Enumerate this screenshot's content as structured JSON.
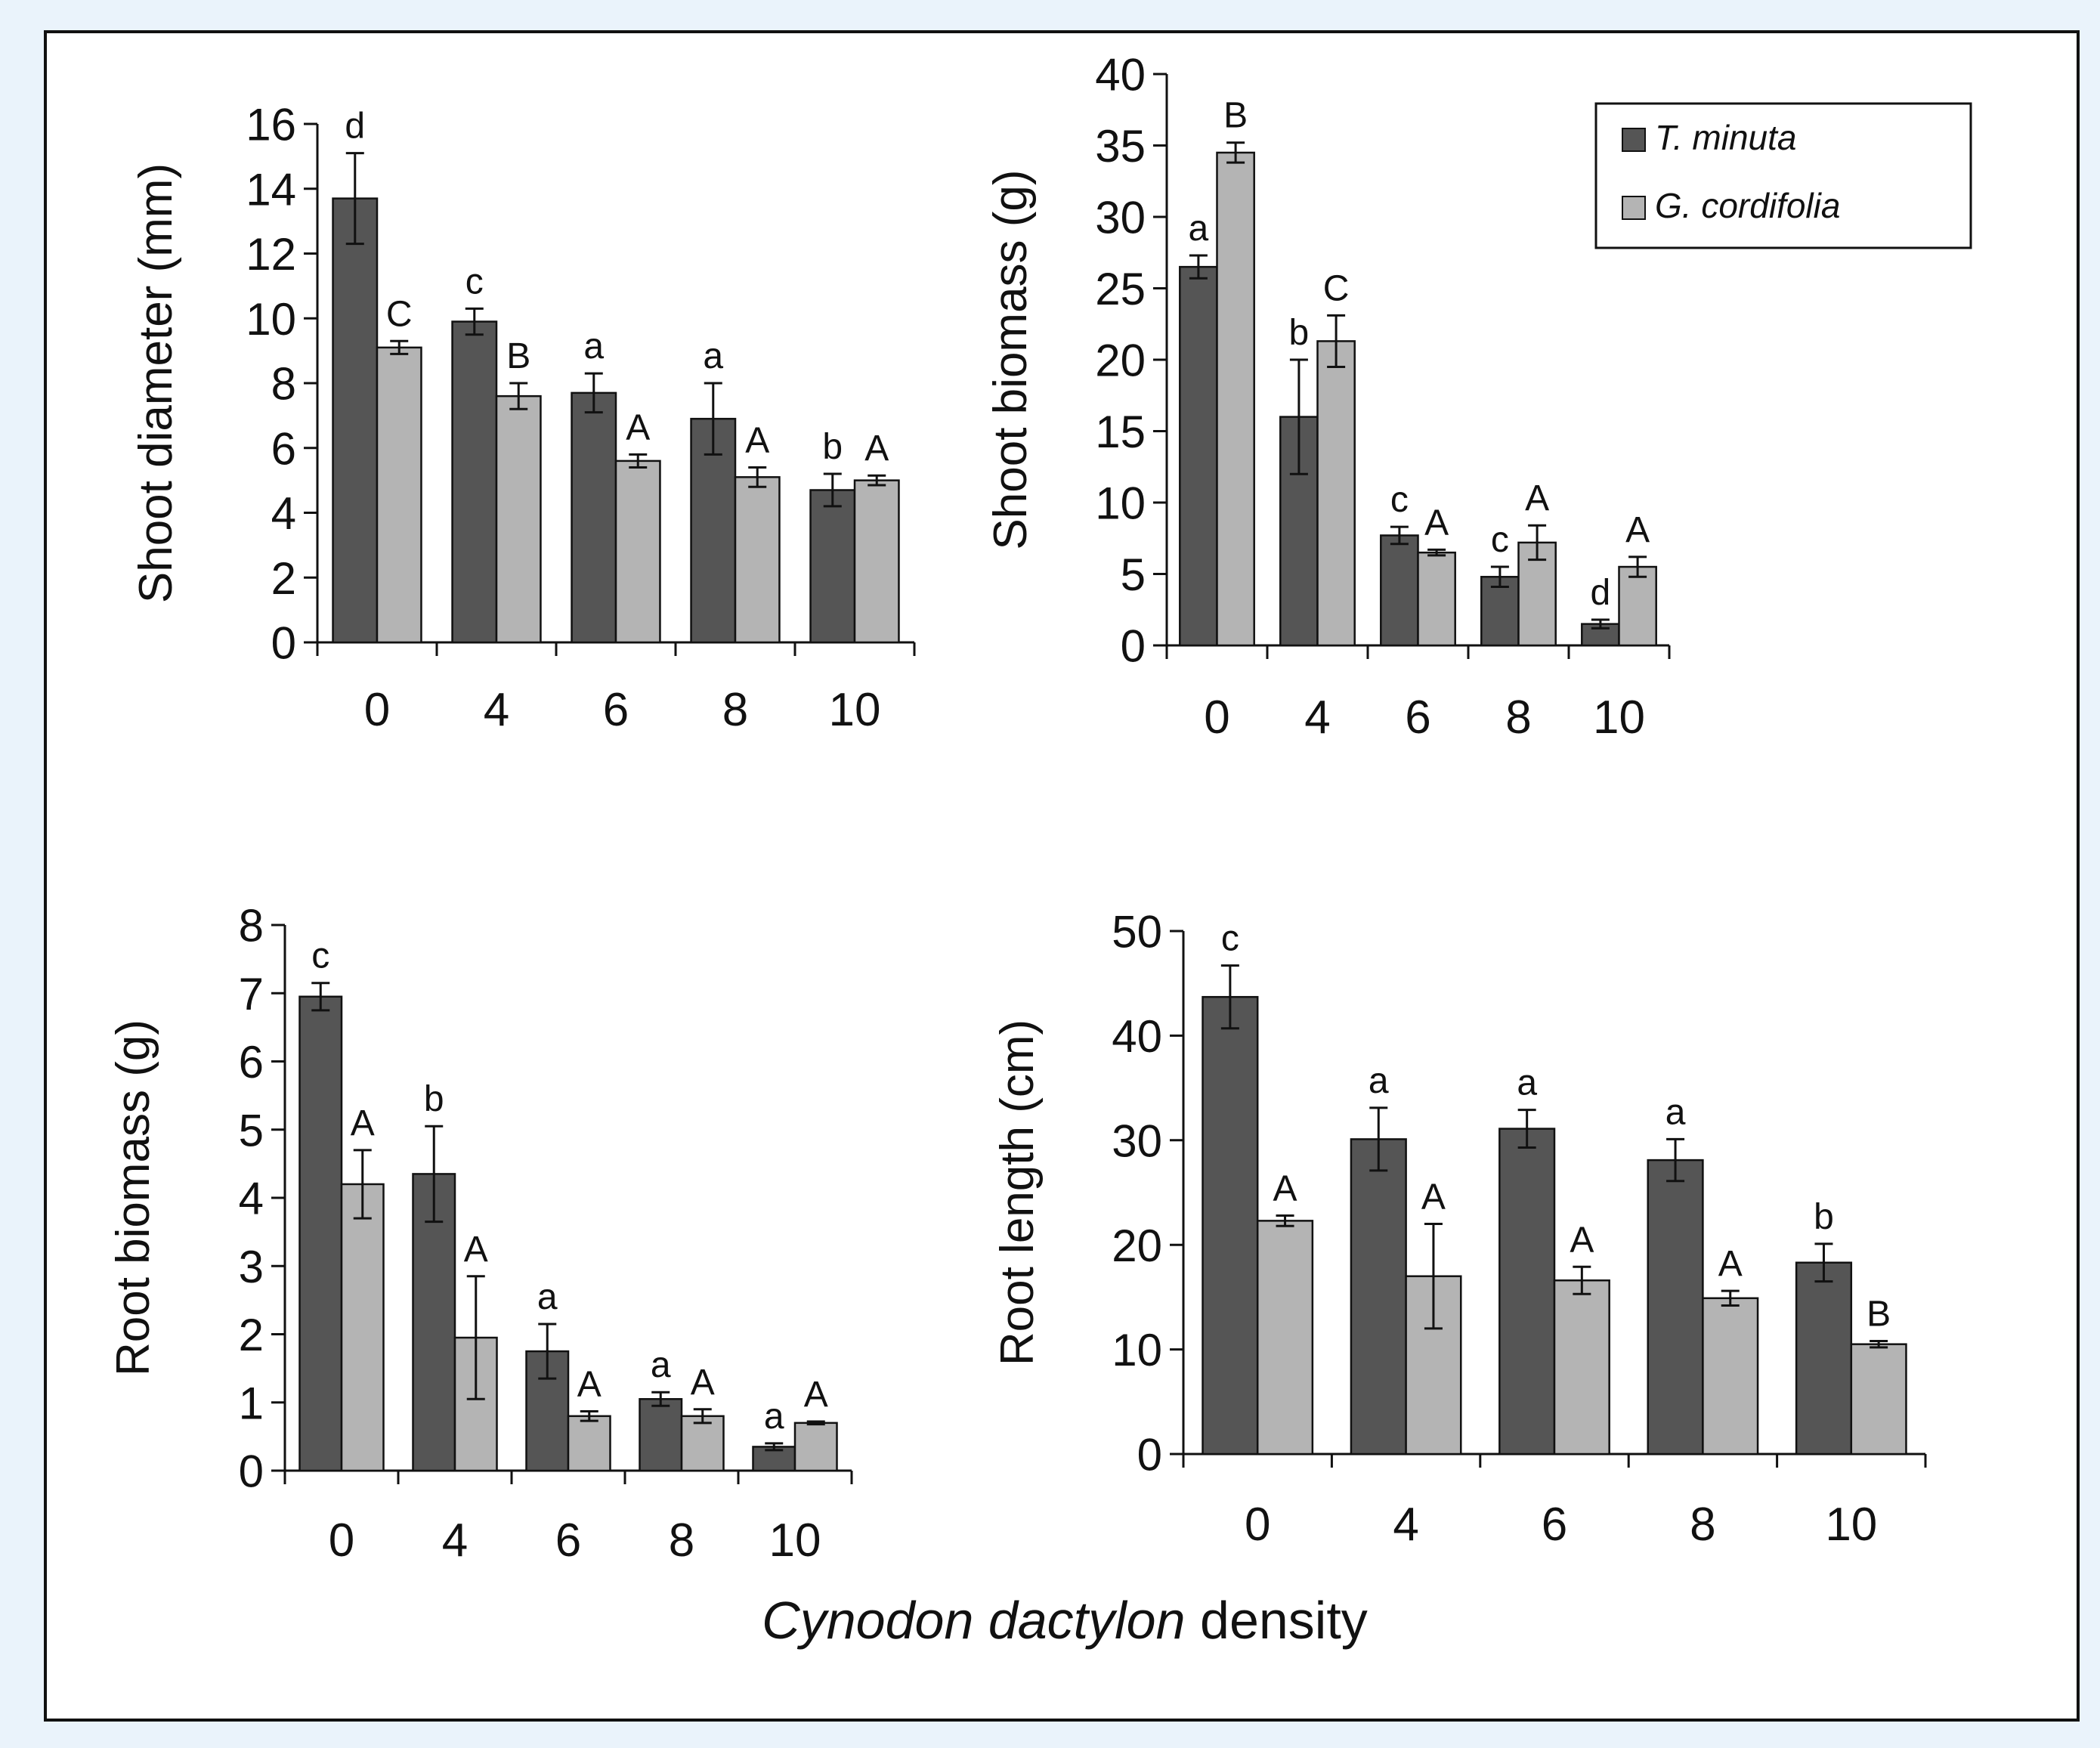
{
  "colors": {
    "tminuta": "#555555",
    "gcordifolia": "#b4b4b4",
    "axis": "#111111",
    "frame_border": "#111111",
    "page_bg": "#eaf3fb"
  },
  "legend": {
    "tminuta": "T. minuta",
    "gcordifolia": "G. cordifolia"
  },
  "xlabel": {
    "italic": "Cynodon dactylon",
    "plain": " density"
  },
  "chart_data": [
    {
      "id": "shoot-diameter",
      "type": "bar",
      "title": "",
      "xlabel": "Cynodon dactylon density",
      "ylabel": "Shoot diameter (mm)",
      "categories": [
        "0",
        "4",
        "6",
        "8",
        "10"
      ],
      "ylim": [
        0,
        16
      ],
      "yticks": [
        0,
        2,
        4,
        6,
        8,
        10,
        12,
        14,
        16
      ],
      "grid": false,
      "series": [
        {
          "name": "T. minuta",
          "values": [
            13.7,
            9.9,
            7.7,
            6.9,
            4.7
          ],
          "errors": [
            1.4,
            0.4,
            0.6,
            1.1,
            0.5
          ],
          "letters": [
            "d",
            "c",
            "a",
            "a",
            "b"
          ]
        },
        {
          "name": "G. cordifolia",
          "values": [
            9.1,
            7.6,
            5.6,
            5.1,
            5.0
          ],
          "errors": [
            0.2,
            0.4,
            0.2,
            0.3,
            0.15
          ],
          "letters": [
            "C",
            "B",
            "A",
            "A",
            "A"
          ]
        }
      ]
    },
    {
      "id": "shoot-biomass",
      "type": "bar",
      "title": "",
      "xlabel": "Cynodon dactylon density",
      "ylabel": "Shoot biomass (g)",
      "categories": [
        "0",
        "4",
        "6",
        "8",
        "10"
      ],
      "ylim": [
        0,
        40
      ],
      "yticks": [
        0,
        5,
        10,
        15,
        20,
        25,
        30,
        35,
        40
      ],
      "grid": false,
      "legend": "top-right",
      "series": [
        {
          "name": "T. minuta",
          "values": [
            26.5,
            16.0,
            7.7,
            4.8,
            1.5
          ],
          "errors": [
            0.8,
            4.0,
            0.6,
            0.7,
            0.3
          ],
          "letters": [
            "a",
            "b",
            "c",
            "c",
            "d"
          ]
        },
        {
          "name": "G. cordifolia",
          "values": [
            34.5,
            21.3,
            6.5,
            7.2,
            5.5
          ],
          "errors": [
            0.7,
            1.8,
            0.2,
            1.2,
            0.7
          ],
          "letters": [
            "B",
            "C",
            "A",
            "A",
            "A"
          ]
        }
      ]
    },
    {
      "id": "root-biomass",
      "type": "bar",
      "title": "",
      "xlabel": "Cynodon dactylon density",
      "ylabel": "Root biomass  (g)",
      "categories": [
        "0",
        "4",
        "6",
        "8",
        "10"
      ],
      "ylim": [
        0,
        8
      ],
      "yticks": [
        0,
        1,
        2,
        3,
        4,
        5,
        6,
        7,
        8
      ],
      "grid": false,
      "series": [
        {
          "name": "T. minuta",
          "values": [
            6.95,
            4.35,
            1.75,
            1.05,
            0.35
          ],
          "errors": [
            0.2,
            0.7,
            0.4,
            0.1,
            0.05
          ],
          "letters": [
            "c",
            "b",
            "a",
            "a",
            "a"
          ]
        },
        {
          "name": "G. cordifolia",
          "values": [
            4.2,
            1.95,
            0.8,
            0.8,
            0.7
          ],
          "errors": [
            0.5,
            0.9,
            0.07,
            0.1,
            0.02
          ],
          "letters": [
            "A",
            "A",
            "A",
            "A",
            "A"
          ]
        }
      ]
    },
    {
      "id": "root-length",
      "type": "bar",
      "title": "",
      "xlabel": "Cynodon dactylon density",
      "ylabel": "Root length (cm)",
      "categories": [
        "0",
        "4",
        "6",
        "8",
        "10"
      ],
      "ylim": [
        0,
        50
      ],
      "yticks": [
        0,
        10,
        20,
        30,
        40,
        50
      ],
      "grid": false,
      "series": [
        {
          "name": "T. minuta",
          "values": [
            43.7,
            30.1,
            31.1,
            28.1,
            18.3
          ],
          "errors": [
            3.0,
            3.0,
            1.8,
            2.0,
            1.8
          ],
          "letters": [
            "c",
            "a",
            "a",
            "a",
            "b"
          ]
        },
        {
          "name": "G. cordifolia",
          "values": [
            22.3,
            17.0,
            16.6,
            14.9,
            10.5
          ],
          "errors": [
            0.5,
            5.0,
            1.3,
            0.7,
            0.3
          ],
          "letters": [
            "A",
            "A",
            "A",
            "A",
            "B"
          ]
        }
      ]
    }
  ]
}
